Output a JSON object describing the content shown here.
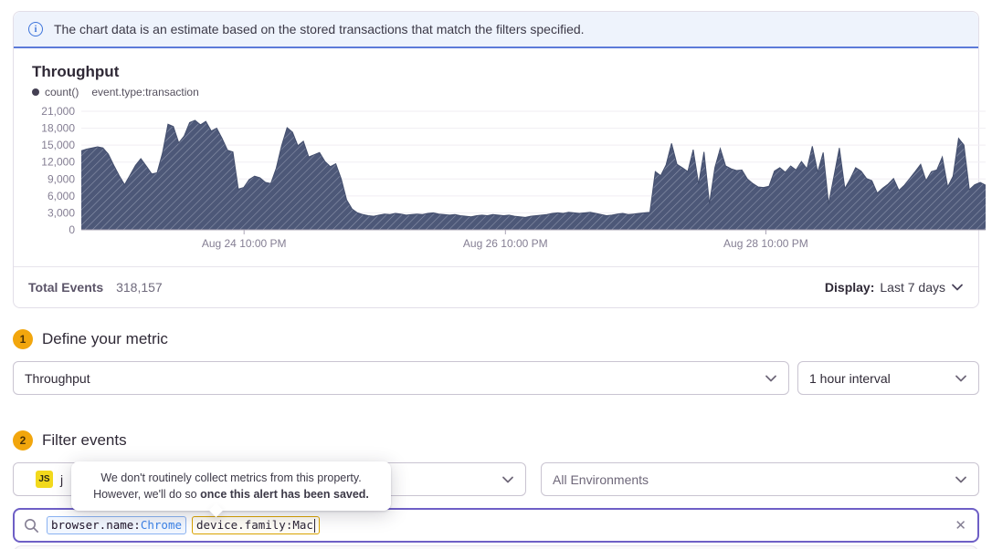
{
  "banner": {
    "text": "The chart data is an estimate based on the stored transactions that match the filters specified."
  },
  "chart_panel": {
    "title": "Throughput",
    "legend": {
      "series_label": "count()",
      "query_label": "event.type:transaction"
    },
    "footer": {
      "total_label": "Total Events",
      "total_value": "318,157",
      "display_label": "Display:",
      "display_value": "Last 7 days"
    }
  },
  "chart_data": {
    "type": "area",
    "title": "Throughput",
    "series": [
      {
        "name": "count() event.type:transaction",
        "color": "#4d5878",
        "hatch_color": "#8b93ab"
      }
    ],
    "ylim": [
      0,
      21000
    ],
    "grid": true,
    "yticks": [
      {
        "value": 0,
        "label": "0"
      },
      {
        "value": 3000,
        "label": "3,000"
      },
      {
        "value": 6000,
        "label": "6,000"
      },
      {
        "value": 9000,
        "label": "9,000"
      },
      {
        "value": 12000,
        "label": "12,000"
      },
      {
        "value": 15000,
        "label": "15,000"
      },
      {
        "value": 18000,
        "label": "18,000"
      },
      {
        "value": 21000,
        "label": "21,000"
      }
    ],
    "xticks": [
      {
        "label": "Aug 24 10:00 PM",
        "pos": 0.18
      },
      {
        "label": "Aug 26 10:00 PM",
        "pos": 0.469
      },
      {
        "label": "Aug 28 10:00 PM",
        "pos": 0.757
      }
    ],
    "interval": "1 hour",
    "values": [
      14000,
      14300,
      14500,
      14700,
      14500,
      13400,
      11400,
      9600,
      8000,
      9700,
      11400,
      12600,
      11300,
      9900,
      10100,
      13600,
      18700,
      18300,
      15400,
      16600,
      19000,
      19400,
      18600,
      19200,
      17500,
      18000,
      16200,
      14100,
      13800,
      7200,
      7500,
      8900,
      9500,
      9200,
      8400,
      8200,
      10900,
      14900,
      18100,
      17300,
      14900,
      15700,
      12900,
      13300,
      13700,
      12100,
      11200,
      11700,
      9000,
      5300,
      3700,
      3000,
      2700,
      2500,
      2400,
      2600,
      2800,
      2700,
      2900,
      2800,
      2600,
      2700,
      2800,
      2700,
      2900,
      3000,
      2800,
      2700,
      2600,
      2700,
      2500,
      2400,
      2300,
      2500,
      2600,
      2500,
      2700,
      2600,
      2500,
      2600,
      2400,
      2300,
      2200,
      2400,
      2500,
      2600,
      2700,
      2900,
      3000,
      2900,
      3100,
      3000,
      2900,
      3000,
      3100,
      2900,
      2700,
      2500,
      2600,
      2800,
      2900,
      2700,
      2800,
      2900,
      3000,
      3100,
      10300,
      9600,
      11500,
      15300,
      11600,
      11000,
      10300,
      14200,
      8100,
      13800,
      4600,
      11000,
      14400,
      11300,
      10800,
      10500,
      10600,
      9000,
      8200,
      7600,
      7500,
      7700,
      10400,
      11000,
      10200,
      11300,
      10600,
      12100,
      10800,
      14800,
      10200,
      13700,
      4600,
      9500,
      14500,
      7300,
      9000,
      11000,
      10400,
      9100,
      8700,
      6500,
      7400,
      8100,
      9100,
      7000,
      7900,
      9100,
      10300,
      11600,
      8700,
      10300,
      10600,
      12900,
      7600,
      9500,
      16200,
      15000,
      7100,
      8000,
      8400,
      7900
    ]
  },
  "step1": {
    "number": "1",
    "title": "Define your metric",
    "metric_select": "Throughput",
    "interval_select": "1 hour interval"
  },
  "step2": {
    "number": "2",
    "title": "Filter events",
    "project_badge": "JS",
    "project_name": "j",
    "environment_select": "All Environments"
  },
  "tooltip": {
    "line1": "We don't routinely collect metrics from this property.",
    "line2_regular": "However, we'll do so ",
    "line2_bold": "once this alert has been saved."
  },
  "search": {
    "tokens": [
      {
        "key": "browser.name:",
        "value": "Chrome",
        "type": "valid"
      },
      {
        "key": "device.family:",
        "value": "Mac",
        "type": "warning"
      }
    ],
    "clear_icon": "✕"
  },
  "colors": {
    "accent_purple": "#6e5fc6",
    "banner_blue": "#5c7ad9",
    "info_icon_blue": "#3d74db",
    "chart_fill": "#4d5878",
    "step_badge_yellow": "#f2a60d",
    "js_badge_yellow": "#f2d91c",
    "token_valid_border": "#8ab2f1",
    "token_warning_border": "#d9a300"
  }
}
